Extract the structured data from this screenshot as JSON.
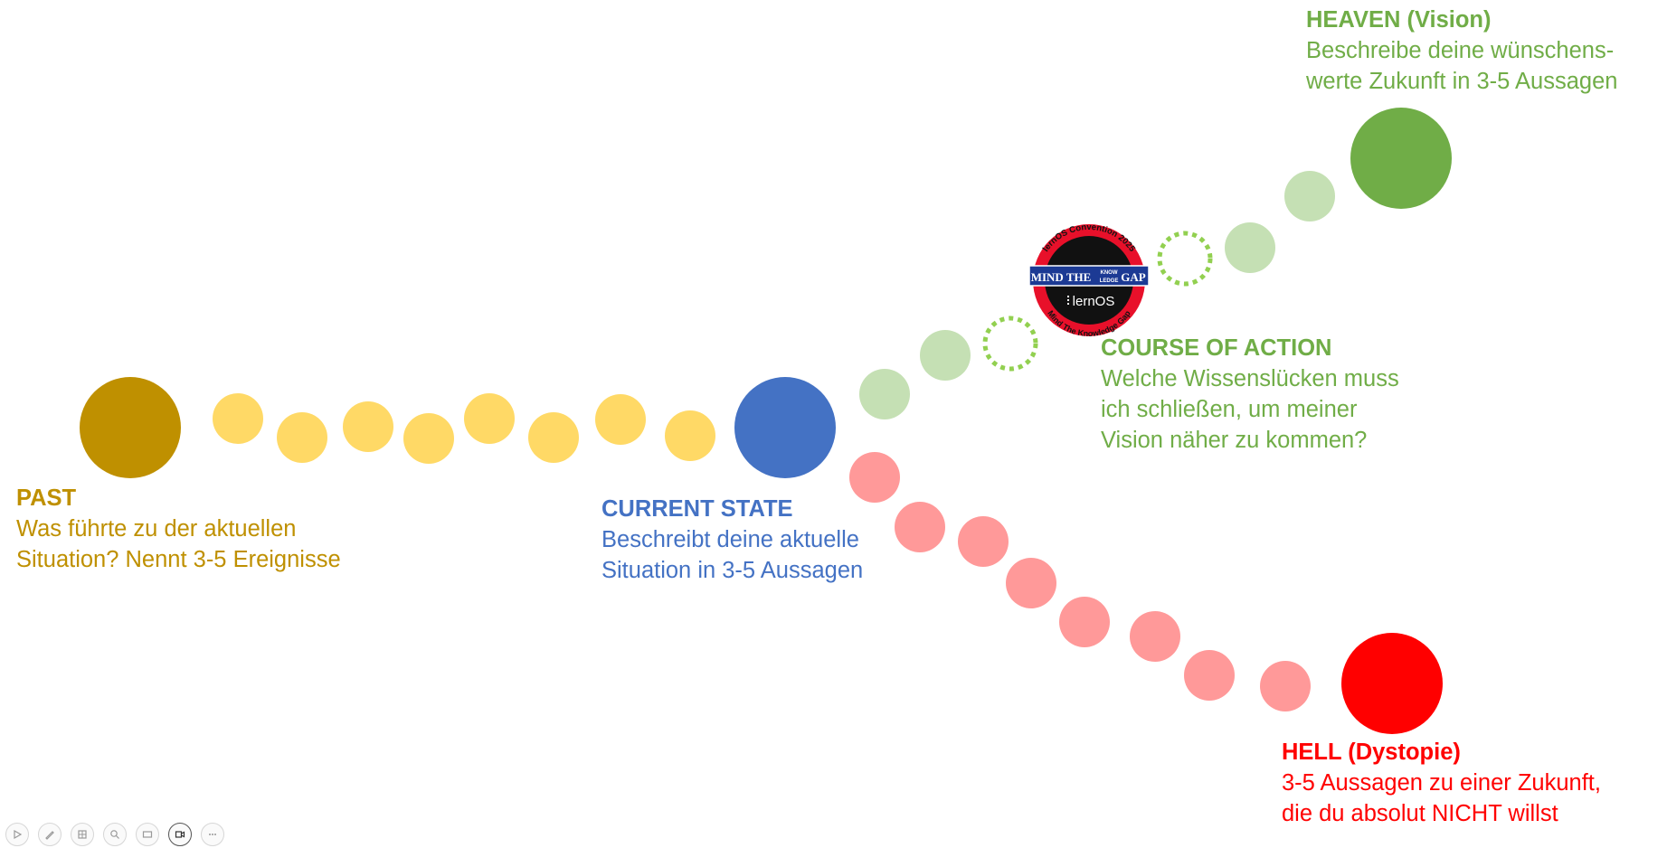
{
  "colors": {
    "past": "#bf9000",
    "past_dots": "#ffd966",
    "current": "#4472c4",
    "course": "#70ad47",
    "course_dots": "#c5e0b4",
    "hell": "#ff0000",
    "hell_dots": "#ff9999"
  },
  "sections": {
    "past": {
      "title": "PAST",
      "line1": "Was führte zu der aktuellen",
      "line2": "Situation? Nennt 3-5 Ereignisse"
    },
    "current": {
      "title": "CURRENT STATE",
      "line1": "Beschreibt deine aktuelle",
      "line2": "Situation in 3-5 Aussagen"
    },
    "course": {
      "title": "COURSE OF ACTION",
      "line1": "Welche Wissenslücken muss",
      "line2": "ich schließen, um meiner",
      "line3": "Vision näher zu kommen?"
    },
    "heaven": {
      "title": "HEAVEN (Vision)",
      "line1": "Beschreibe deine wünschens-",
      "line2": "werte Zukunft in 3-5 Aussagen"
    },
    "hell": {
      "title": "HELL (Dystopie)",
      "line1": "3-5 Aussagen zu einer Zukunft,",
      "line2": "die du absolut NICHT willst"
    }
  },
  "badge": {
    "top_text": "lernOS Convention 2025",
    "banner_left": "MIND THE",
    "banner_small_top": "KNOW",
    "banner_small_bottom": "LEDGE",
    "banner_right": "GAP",
    "logo_text": "lernOS",
    "bottom_text": "Mind The Knowledge Gap"
  },
  "toolbar": {
    "buttons": [
      "play-icon",
      "pen-icon",
      "grid-icon",
      "zoom-icon",
      "subtitles-icon",
      "camera-icon",
      "more-icon"
    ]
  }
}
